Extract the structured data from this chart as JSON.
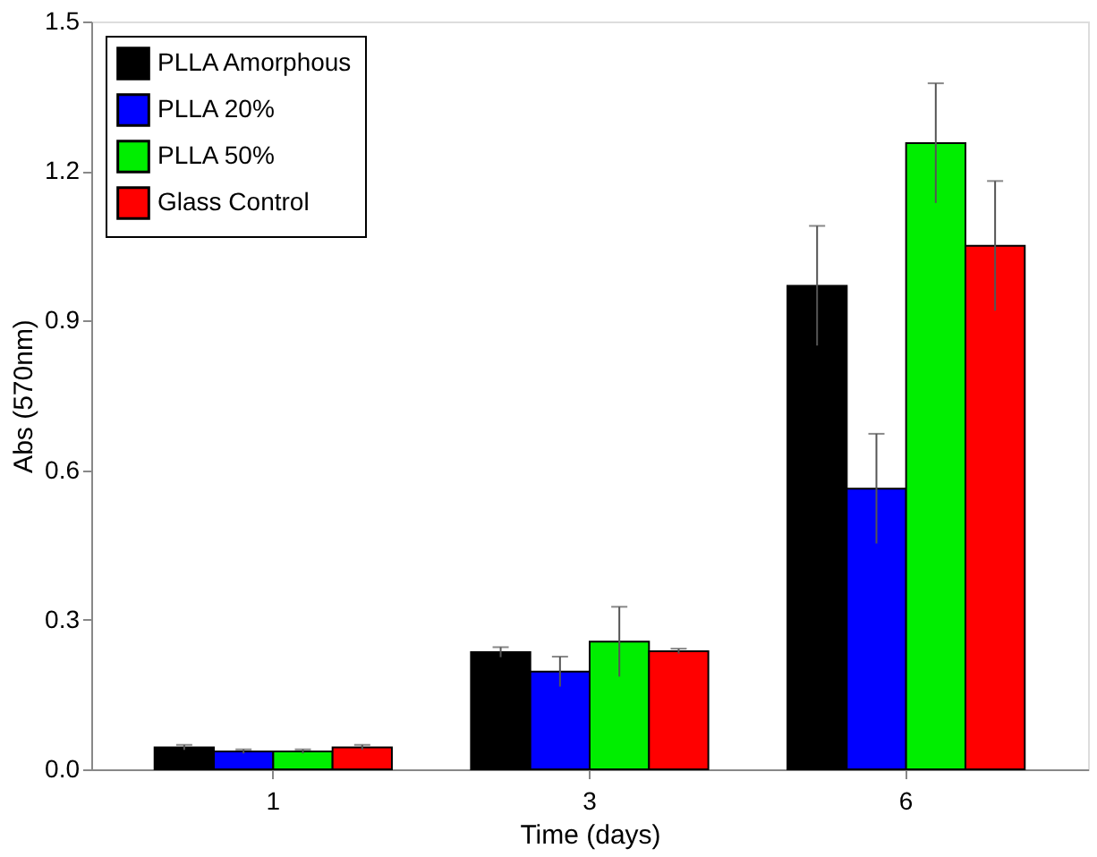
{
  "chart_data": {
    "type": "bar",
    "xlabel": "Time (days)",
    "ylabel": "Abs (570nm)",
    "categories": [
      "1",
      "3",
      "6"
    ],
    "series": [
      {
        "name": "PLLA Amorphous",
        "color": "#000000",
        "values": [
          0.044,
          0.235,
          0.97
        ],
        "errors": [
          0.005,
          0.01,
          0.12
        ]
      },
      {
        "name": "PLLA 20%",
        "color": "#0000ff",
        "values": [
          0.036,
          0.196,
          0.563
        ],
        "errors": [
          0.004,
          0.03,
          0.11
        ]
      },
      {
        "name": "PLLA 50%",
        "color": "#00ee00",
        "values": [
          0.036,
          0.256,
          1.256
        ],
        "errors": [
          0.004,
          0.07,
          0.12
        ]
      },
      {
        "name": "Glass Control",
        "color": "#ff0000",
        "values": [
          0.044,
          0.237,
          1.05
        ],
        "errors": [
          0.005,
          0.005,
          0.13
        ]
      }
    ],
    "ylim": [
      0,
      1.5
    ],
    "yticks": [
      {
        "value": 0,
        "label": "0.0"
      },
      0.3,
      0.6,
      0.9,
      1.2,
      1.5
    ],
    "grid": false,
    "legend": "top left"
  }
}
